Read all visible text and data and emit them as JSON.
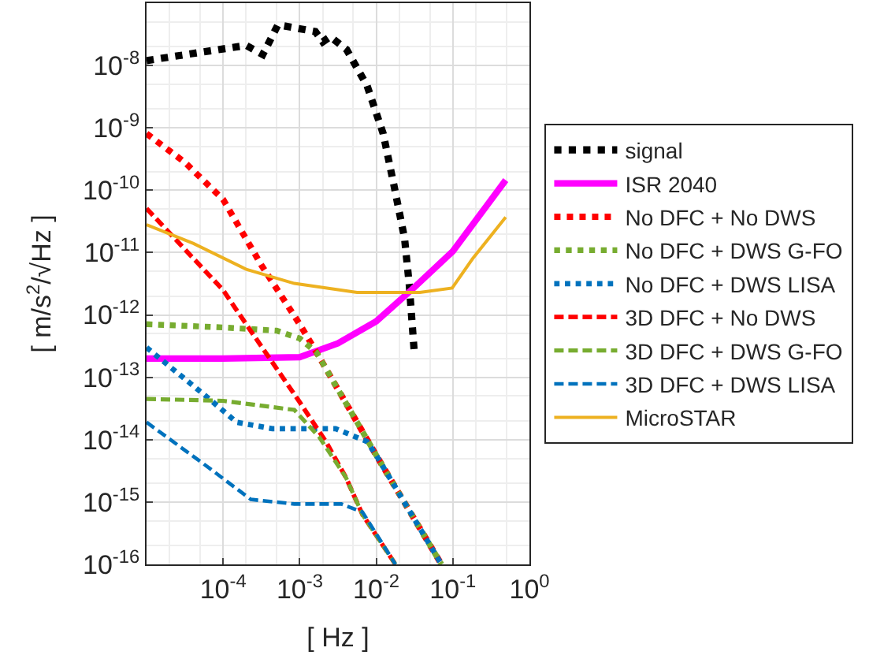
{
  "chart_data": {
    "type": "line",
    "xlabel": "[ Hz ]",
    "ylabel": "[ m/s$^{2}$/√Hz ]",
    "log": "xy",
    "grid": true,
    "legend": "right",
    "marker": "none",
    "xlim": [
      1e-05,
      1
    ],
    "ylim": [
      1e-16,
      1e-07
    ],
    "xticks": [
      {
        "value": 1e-05,
        "label": null
      },
      {
        "value": 0.0001,
        "label": "10$^{-4}$"
      },
      {
        "value": 0.001,
        "label": "10$^{-3}$"
      },
      {
        "value": 0.01,
        "label": "10$^{-2}$"
      },
      {
        "value": 0.1,
        "label": "10$^{-1}$"
      },
      {
        "value": 1,
        "label": "10$^{0}$"
      }
    ],
    "yticks": [
      {
        "value": 1e-16,
        "label": "10$^{-16}$"
      },
      {
        "value": 1e-15,
        "label": "10$^{-15}$"
      },
      {
        "value": 1e-14,
        "label": "10$^{-14}$"
      },
      {
        "value": 1e-13,
        "label": "10$^{-13}$"
      },
      {
        "value": 1e-12,
        "label": "10$^{-12}$"
      },
      {
        "value": 1e-11,
        "label": "10$^{-11}$"
      },
      {
        "value": 1e-10,
        "label": "10$^{-10}$"
      },
      {
        "value": 1e-09,
        "label": "10$^{-9}$"
      },
      {
        "value": 1e-08,
        "label": "10$^{-8}$"
      },
      {
        "value": 1e-07,
        "label": null
      }
    ],
    "series": [
      {
        "name": "signal",
        "color": "#000000",
        "line_style": "dotted",
        "x": [
          1e-05,
          0.0002,
          0.00033,
          0.00052,
          0.0016,
          0.002,
          0.0025,
          0.0041,
          0.0076,
          0.0123,
          0.017,
          0.0234,
          0.027,
          0.0316
        ],
        "values": [
          1.2e-08,
          2.1e-08,
          1.5e-08,
          4.5e-08,
          3.5e-08,
          2.4e-08,
          2.9e-08,
          1.8e-08,
          4.7e-09,
          8.1e-10,
          1.2e-10,
          1.7e-11,
          3e-12,
          2.2e-13
        ]
      },
      {
        "name": "ISR 2040",
        "color": "#ff00ff",
        "line_style": "solid",
        "x": [
          1e-05,
          0.0001,
          0.001,
          0.00316,
          0.01,
          0.0316,
          0.1,
          0.49
        ],
        "values": [
          2e-13,
          2e-13,
          2.1e-13,
          3.5e-13,
          7.9e-13,
          2.8e-12,
          1.05e-11,
          1.45e-10
        ]
      },
      {
        "name": "No DFC + No DWS",
        "color": "#ff0000",
        "line_style": "dotted",
        "x": [
          1e-05,
          3.16e-05,
          0.0001,
          0.000316,
          0.001,
          0.00166,
          0.01,
          0.071
        ],
        "values": [
          8.1e-10,
          2.8e-10,
          7.1e-11,
          6.3e-12,
          7.1e-13,
          2.5e-13,
          5.6e-15,
          1e-16
        ]
      },
      {
        "name": "No DFC + DWS G-FO",
        "color": "#77ac30",
        "line_style": "dotted",
        "x": [
          1e-05,
          0.0001,
          0.0005,
          0.001,
          0.00166,
          0.01,
          0.071
        ],
        "values": [
          7.1e-13,
          6.3e-13,
          5.6e-13,
          4.2e-13,
          2.5e-13,
          5.6e-15,
          1e-16
        ]
      },
      {
        "name": "No DFC + DWS LISA",
        "color": "#0072bd",
        "line_style": "dotted",
        "x": [
          1e-05,
          6.6e-05,
          0.00015,
          0.00044,
          0.00295,
          0.0076,
          0.01,
          0.071
        ],
        "values": [
          3e-13,
          4.5e-14,
          1.9e-14,
          1.5e-14,
          1.5e-14,
          9.3e-15,
          5.6e-15,
          1e-16
        ]
      },
      {
        "name": "3D DFC + No DWS",
        "color": "#ff0000",
        "line_style": "dashed",
        "x": [
          1e-05,
          0.0001,
          0.0002,
          0.001,
          0.0022,
          0.004,
          0.0066,
          0.0178
        ],
        "values": [
          5.1e-11,
          2.5e-12,
          7.1e-13,
          4e-14,
          9.3e-15,
          2.5e-15,
          6.3e-16,
          1e-16
        ]
      },
      {
        "name": "3D DFC + DWS G-FO",
        "color": "#77ac30",
        "line_style": "dashed",
        "x": [
          1e-05,
          0.0001,
          0.00085,
          0.0018,
          0.004,
          0.0066,
          0.0178
        ],
        "values": [
          4.5e-14,
          4.2e-14,
          3e-14,
          1.1e-14,
          2.5e-15,
          6.3e-16,
          1e-16
        ]
      },
      {
        "name": "3D DFC + DWS LISA",
        "color": "#0072bd",
        "line_style": "dashed",
        "x": [
          1e-05,
          6.6e-05,
          0.00023,
          0.00085,
          0.0035,
          0.0066,
          0.0178
        ],
        "values": [
          1.9e-14,
          3.5e-15,
          1.1e-15,
          9.3e-16,
          9.3e-16,
          6.9e-16,
          1e-16
        ]
      },
      {
        "name": "MicroSTAR",
        "color": "#edb120",
        "line_style": "solid",
        "x": [
          1e-05,
          4.1e-05,
          0.0002,
          0.00085,
          0.0056,
          0.037,
          0.098,
          0.18,
          0.49
        ],
        "values": [
          2.8e-11,
          1.4e-11,
          5.4e-12,
          3.2e-12,
          2.3e-12,
          2.3e-12,
          2.7e-12,
          7.9e-12,
          3.7e-11
        ]
      }
    ]
  }
}
